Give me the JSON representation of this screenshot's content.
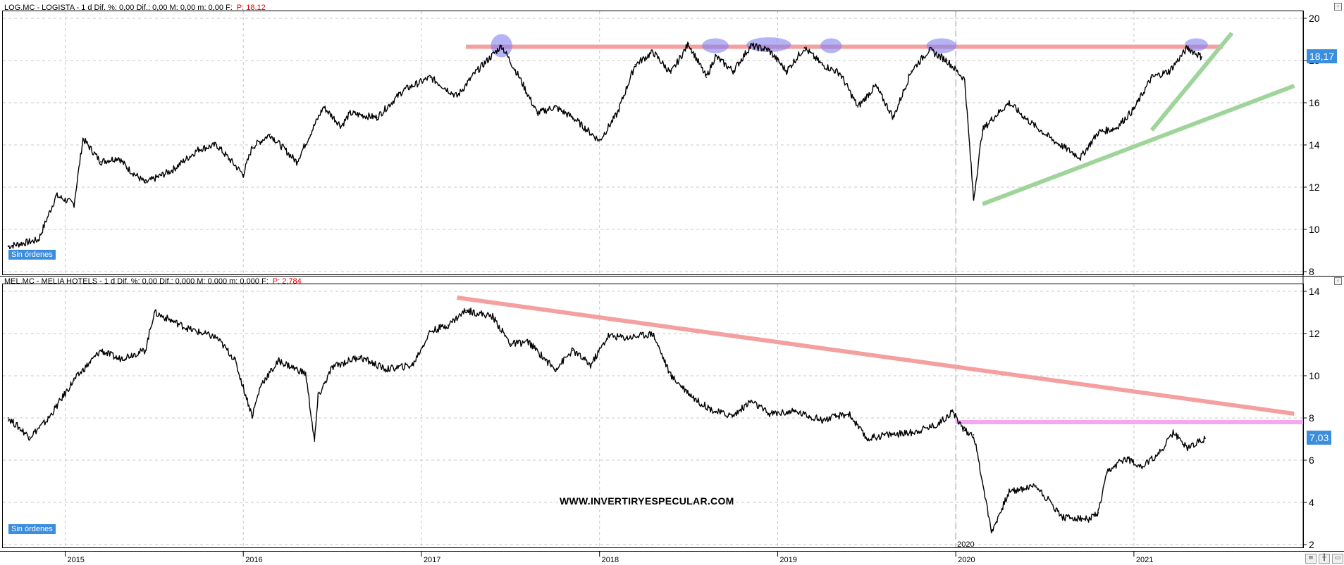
{
  "header_top": {
    "text": "LOG.MC - LOGISTA -  1 d  Dif. %: 0,00  Dif.: 0,00  M: 0,00  m: 0,00  F:",
    "p": "P: 18,12"
  },
  "header_bottom": {
    "text": "MEL.MC - MELIA HOTELS -  1 d  Dif. %: 0,00  Dif.: 0,000  M: 0,000  m: 0,000  F:",
    "p": "P: 2,784"
  },
  "badge_top": "Sin órdenes",
  "badge_bottom": "Sin órdenes",
  "price_top": "18,17",
  "price_bottom": "7,03",
  "watermark": "WWW.INVERTIRYESPECULAR.COM",
  "x_axis": {
    "years": [
      "2015",
      "2016",
      "2017",
      "2018",
      "2019",
      "2020",
      "2021"
    ],
    "year_positions": [
      2015,
      2016,
      2017,
      2018,
      2019,
      2020,
      2021
    ],
    "xlim": [
      2014.65,
      2021.95
    ],
    "marker_label": "2020",
    "marker_x": 2020
  },
  "colors": {
    "price_line": "#000000",
    "resistance": "#f4a0a0",
    "highlight": "#8080f0",
    "support": "#9fd49a",
    "magenta": "#f4a8f0",
    "grid": "#c8c8c8",
    "badge": "#3b8ddd"
  },
  "chart_data": [
    {
      "type": "line",
      "name": "LOG.MC - LOGISTA",
      "ylim": [
        8,
        20
      ],
      "yticks": [
        "8",
        "10",
        "12",
        "14",
        "16",
        "18",
        "20"
      ],
      "ytick_values": [
        8,
        10,
        12,
        14,
        16,
        18,
        20
      ],
      "x": [
        2014.68,
        2014.85,
        2014.95,
        2015.05,
        2015.1,
        2015.2,
        2015.3,
        2015.35,
        2015.45,
        2015.6,
        2015.75,
        2015.85,
        2016.0,
        2016.05,
        2016.15,
        2016.3,
        2016.45,
        2016.55,
        2016.6,
        2016.75,
        2016.9,
        2017.05,
        2017.2,
        2017.3,
        2017.45,
        2017.55,
        2017.65,
        2017.75,
        2017.85,
        2018.0,
        2018.1,
        2018.2,
        2018.3,
        2018.4,
        2018.5,
        2018.6,
        2018.65,
        2018.75,
        2018.85,
        2018.95,
        2019.05,
        2019.15,
        2019.25,
        2019.35,
        2019.45,
        2019.55,
        2019.65,
        2019.75,
        2019.85,
        2019.95,
        2020.05,
        2020.1,
        2020.15,
        2020.2,
        2020.3,
        2020.4,
        2020.55,
        2020.7,
        2020.8,
        2020.9,
        2021.0,
        2021.1,
        2021.2,
        2021.3,
        2021.38
      ],
      "y": [
        9.2,
        9.5,
        11.6,
        11.2,
        14.3,
        13.2,
        13.4,
        12.9,
        12.2,
        12.8,
        13.8,
        14.0,
        12.6,
        13.9,
        14.5,
        13.2,
        15.8,
        14.9,
        15.5,
        15.3,
        16.6,
        17.2,
        16.3,
        17.4,
        18.7,
        17.2,
        15.5,
        15.8,
        15.3,
        14.2,
        15.5,
        17.8,
        18.4,
        17.4,
        18.8,
        17.2,
        18.2,
        17.5,
        18.7,
        18.5,
        17.5,
        18.6,
        17.8,
        17.4,
        15.8,
        16.8,
        15.3,
        17.5,
        18.5,
        18.0,
        17.1,
        11.4,
        14.7,
        15.2,
        16.0,
        15.2,
        14.2,
        13.4,
        14.6,
        14.8,
        15.7,
        17.2,
        17.5,
        18.6,
        18.17
      ],
      "overlays": {
        "resistance": {
          "y": 18.65,
          "x": [
            2017.25,
            2021.5
          ]
        },
        "support_long": {
          "x": [
            2020.15,
            2021.9
          ],
          "y": [
            11.2,
            16.8
          ]
        },
        "support_steep": {
          "x": [
            2021.1,
            2021.55
          ],
          "y": [
            14.7,
            19.3
          ]
        },
        "highlights": [
          {
            "x": 2017.45,
            "y": 18.7,
            "w": 0.12,
            "h": 1.1
          },
          {
            "x": 2018.65,
            "y": 18.7,
            "w": 0.15,
            "h": 0.7
          },
          {
            "x": 2018.95,
            "y": 18.75,
            "w": 0.25,
            "h": 0.7
          },
          {
            "x": 2019.3,
            "y": 18.7,
            "w": 0.12,
            "h": 0.7
          },
          {
            "x": 2019.92,
            "y": 18.7,
            "w": 0.17,
            "h": 0.7
          },
          {
            "x": 2021.35,
            "y": 18.75,
            "w": 0.13,
            "h": 0.6
          }
        ]
      }
    },
    {
      "type": "line",
      "name": "MEL.MC - MELIA HOTELS",
      "ylim": [
        2,
        14
      ],
      "yticks": [
        "2",
        "4",
        "6",
        "8",
        "10",
        "12",
        "14"
      ],
      "ytick_values": [
        2,
        4,
        6,
        8,
        10,
        12,
        14
      ],
      "x": [
        2014.68,
        2014.8,
        2014.9,
        2015.05,
        2015.2,
        2015.3,
        2015.45,
        2015.5,
        2015.7,
        2015.85,
        2015.95,
        2016.05,
        2016.1,
        2016.2,
        2016.35,
        2016.4,
        2016.42,
        2016.5,
        2016.65,
        2016.8,
        2016.95,
        2017.05,
        2017.15,
        2017.25,
        2017.4,
        2017.5,
        2017.6,
        2017.75,
        2017.85,
        2017.95,
        2018.05,
        2018.15,
        2018.3,
        2018.4,
        2018.55,
        2018.65,
        2018.75,
        2018.85,
        2018.95,
        2019.1,
        2019.25,
        2019.4,
        2019.5,
        2019.6,
        2019.75,
        2019.9,
        2019.98,
        2020.05,
        2020.1,
        2020.15,
        2020.2,
        2020.3,
        2020.45,
        2020.6,
        2020.75,
        2020.8,
        2020.85,
        2020.95,
        2021.05,
        2021.15,
        2021.22,
        2021.3,
        2021.4
      ],
      "y": [
        8.0,
        7.1,
        7.9,
        9.8,
        11.2,
        10.8,
        11.2,
        13.0,
        12.2,
        11.8,
        10.8,
        8.1,
        9.6,
        10.7,
        10.1,
        6.9,
        9.0,
        10.4,
        10.9,
        10.3,
        10.5,
        12.1,
        12.4,
        13.1,
        12.8,
        11.5,
        11.6,
        10.3,
        11.2,
        10.5,
        11.9,
        11.8,
        12.0,
        10.0,
        8.8,
        8.3,
        8.1,
        8.8,
        8.2,
        8.3,
        7.9,
        8.2,
        7.0,
        7.2,
        7.3,
        7.7,
        8.3,
        7.4,
        7.2,
        5.0,
        2.6,
        4.5,
        4.8,
        3.3,
        3.2,
        3.5,
        5.4,
        6.1,
        5.7,
        6.4,
        7.3,
        6.6,
        7.03
      ],
      "overlays": {
        "trendline": {
          "x": [
            2017.2,
            2021.9
          ],
          "y": [
            13.7,
            8.2
          ]
        },
        "magenta": {
          "y": 7.8,
          "x": [
            2020.0,
            2021.95
          ]
        }
      }
    }
  ]
}
